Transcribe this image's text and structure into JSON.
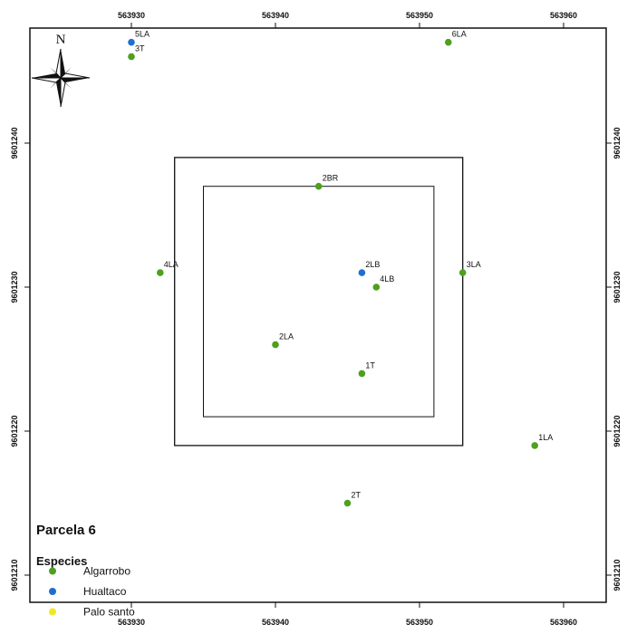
{
  "map": {
    "title": "Parcela 6",
    "north_label": "N",
    "x_ticks": [
      {
        "value": 563930,
        "label": "563930"
      },
      {
        "value": 563940,
        "label": "563940"
      },
      {
        "value": 563950,
        "label": "563950"
      },
      {
        "value": 563960,
        "label": "563960"
      }
    ],
    "y_ticks": [
      {
        "value": 9601240,
        "label": "9601240"
      },
      {
        "value": 9601230,
        "label": "9601230"
      },
      {
        "value": 9601220,
        "label": "9601220"
      },
      {
        "value": 9601210,
        "label": "9601210"
      }
    ],
    "outer_plot": {
      "x0": 563933,
      "x1": 563953,
      "y0": 9601219,
      "y1": 9601239
    },
    "inner_plot": {
      "x0": 563935,
      "x1": 563951,
      "y0": 9601221,
      "y1": 9601237
    },
    "points": [
      {
        "label": "5LA",
        "species": "Hualtaco",
        "x": 563930,
        "y": 9601247
      },
      {
        "label": "3T",
        "species": "Algarrobo",
        "x": 563930,
        "y": 9601246
      },
      {
        "label": "6LA",
        "species": "Algarrobo",
        "x": 563952,
        "y": 9601247
      },
      {
        "label": "2BR",
        "species": "Algarrobo",
        "x": 563943,
        "y": 9601237
      },
      {
        "label": "4LA",
        "species": "Algarrobo",
        "x": 563932,
        "y": 9601231
      },
      {
        "label": "3LA",
        "species": "Algarrobo",
        "x": 563953,
        "y": 9601231
      },
      {
        "label": "2LB",
        "species": "Hualtaco",
        "x": 563946,
        "y": 9601231
      },
      {
        "label": "4LB",
        "species": "Algarrobo",
        "x": 563947,
        "y": 9601230
      },
      {
        "label": "2LA",
        "species": "Algarrobo",
        "x": 563940,
        "y": 9601226
      },
      {
        "label": "1T",
        "species": "Algarrobo",
        "x": 563946,
        "y": 9601224
      },
      {
        "label": "1LA",
        "species": "Algarrobo",
        "x": 563958,
        "y": 9601219
      },
      {
        "label": "2T",
        "species": "Algarrobo",
        "x": 563945,
        "y": 9601215
      }
    ],
    "legend": {
      "title": "Especies",
      "items": [
        {
          "name": "Algarrobo",
          "color": "#4ea01f"
        },
        {
          "name": "Hualtaco",
          "color": "#1f6fd1"
        },
        {
          "name": "Palo santo",
          "color": "#f2e820"
        }
      ]
    }
  }
}
